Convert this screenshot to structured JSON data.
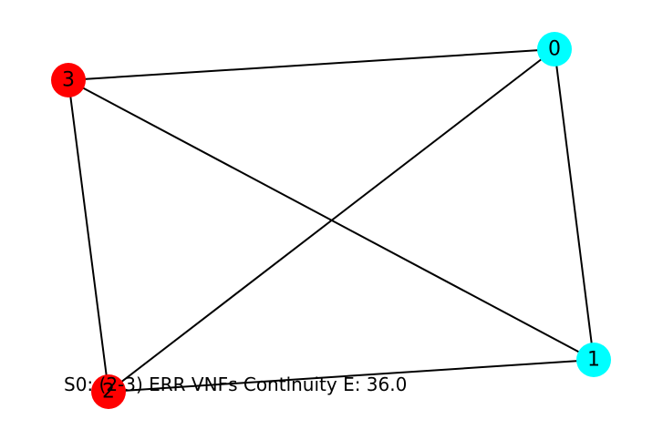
{
  "graph": {
    "nodes": [
      {
        "id": "0",
        "label": "0",
        "color": "#00ffff"
      },
      {
        "id": "1",
        "label": "1",
        "color": "#00ffff"
      },
      {
        "id": "2",
        "label": "2",
        "color": "#ff0000"
      },
      {
        "id": "3",
        "label": "3",
        "color": "#ff0000"
      }
    ],
    "edges": [
      {
        "source": "0",
        "target": "3"
      },
      {
        "source": "0",
        "target": "2"
      },
      {
        "source": "0",
        "target": "1"
      },
      {
        "source": "3",
        "target": "1"
      },
      {
        "source": "3",
        "target": "2"
      },
      {
        "source": "2",
        "target": "1"
      }
    ],
    "edge_color": "#000000"
  },
  "caption": {
    "text": "S0: (2-3) ERR VNFs Continuity  E: 36.0"
  }
}
